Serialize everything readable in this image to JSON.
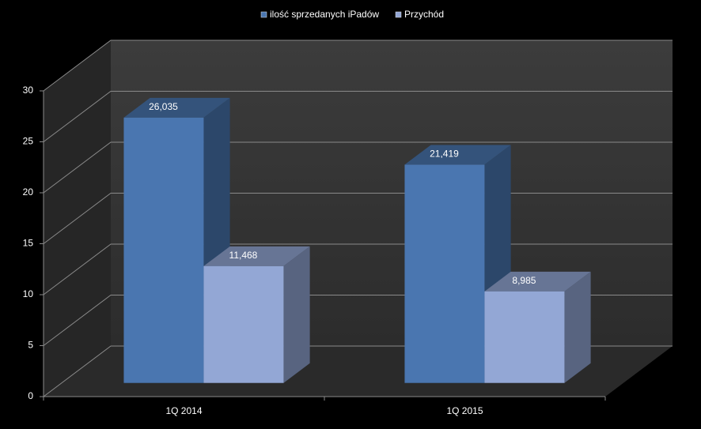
{
  "chart_data": {
    "type": "bar3d",
    "categories": [
      "1Q 2014",
      "1Q 2015"
    ],
    "series": [
      {
        "name": "ilość sprzedanych iPadów",
        "color": "#4a76b0",
        "values": [
          26.035,
          21.419
        ],
        "value_labels": [
          "26,035",
          "21,419"
        ]
      },
      {
        "name": "Przychód",
        "color": "#93a7d5",
        "values": [
          11.468,
          8.985
        ],
        "value_labels": [
          "11,468",
          "8,985"
        ]
      }
    ],
    "ylim": [
      0,
      30
    ],
    "yticks": [
      0,
      5,
      10,
      15,
      20,
      25,
      30
    ],
    "grid": true,
    "legend": "top"
  }
}
